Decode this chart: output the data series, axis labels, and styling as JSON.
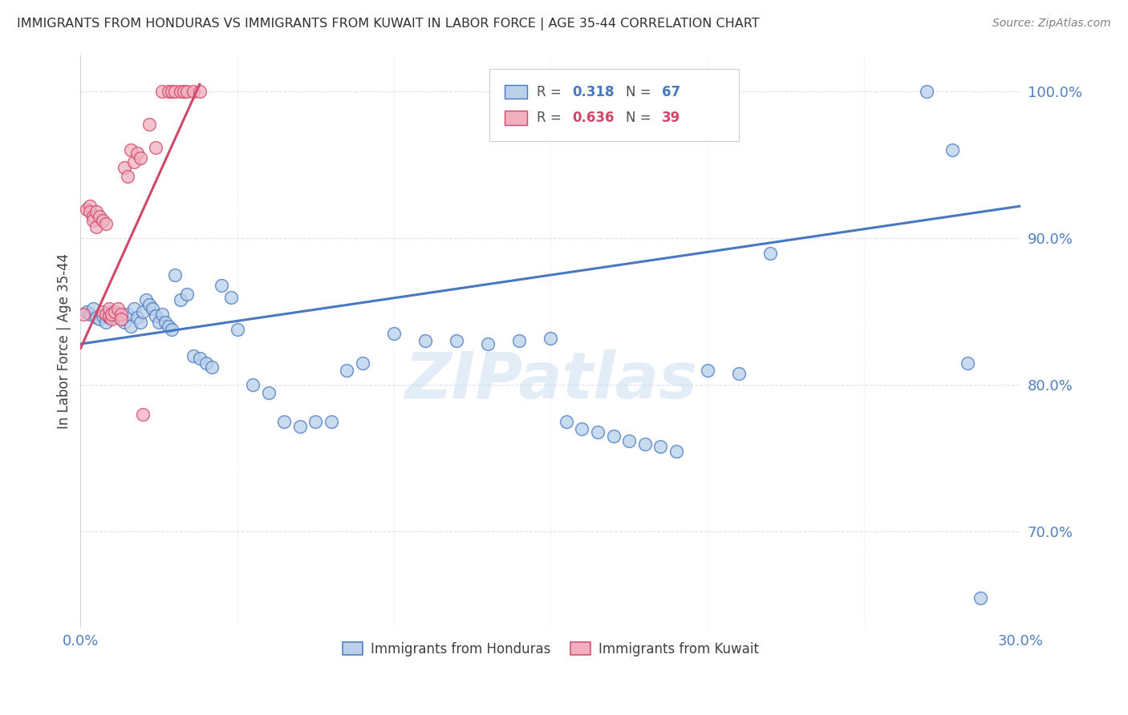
{
  "title": "IMMIGRANTS FROM HONDURAS VS IMMIGRANTS FROM KUWAIT IN LABOR FORCE | AGE 35-44 CORRELATION CHART",
  "source": "Source: ZipAtlas.com",
  "ylabel": "In Labor Force | Age 35-44",
  "xlim": [
    0.0,
    0.3
  ],
  "ylim": [
    0.635,
    1.025
  ],
  "yticks": [
    0.7,
    0.8,
    0.9,
    1.0
  ],
  "ytick_labels": [
    "70.0%",
    "80.0%",
    "90.0%",
    "100.0%"
  ],
  "xticks": [
    0.0,
    0.05,
    0.1,
    0.15,
    0.2,
    0.25,
    0.3
  ],
  "xtick_labels": [
    "0.0%",
    "",
    "",
    "",
    "",
    "",
    "30.0%"
  ],
  "legend_r1_val": "0.318",
  "legend_n1_val": "67",
  "legend_r2_val": "0.636",
  "legend_n2_val": "39",
  "label1": "Immigrants from Honduras",
  "label2": "Immigrants from Kuwait",
  "blue_fill": "#b8d0ea",
  "blue_edge": "#4878c0",
  "pink_fill": "#f0b0c0",
  "pink_edge": "#d04868",
  "blue_line": "#4878c0",
  "pink_line": "#d04868",
  "blue_text": "#4878c0",
  "pink_text": "#d04868",
  "watermark": "ZIPatlas",
  "grid_color": "#d8dde8",
  "tick_color": "#5080c0",
  "title_color": "#303030",
  "source_color": "#808080",
  "ylabel_color": "#404040",
  "hond_x": [
    0.002,
    0.003,
    0.004,
    0.005,
    0.006,
    0.007,
    0.008,
    0.009,
    0.01,
    0.011,
    0.012,
    0.013,
    0.014,
    0.015,
    0.016,
    0.017,
    0.018,
    0.019,
    0.02,
    0.021,
    0.022,
    0.023,
    0.024,
    0.025,
    0.026,
    0.027,
    0.028,
    0.029,
    0.03,
    0.032,
    0.034,
    0.036,
    0.038,
    0.04,
    0.042,
    0.045,
    0.048,
    0.05,
    0.055,
    0.06,
    0.065,
    0.07,
    0.075,
    0.08,
    0.085,
    0.09,
    0.1,
    0.11,
    0.12,
    0.13,
    0.14,
    0.15,
    0.155,
    0.16,
    0.165,
    0.17,
    0.175,
    0.18,
    0.185,
    0.19,
    0.2,
    0.21,
    0.22,
    0.27,
    0.278,
    0.283,
    0.287
  ],
  "hond_y": [
    0.85,
    0.848,
    0.852,
    0.846,
    0.845,
    0.847,
    0.843,
    0.846,
    0.85,
    0.849,
    0.847,
    0.845,
    0.843,
    0.848,
    0.84,
    0.852,
    0.846,
    0.843,
    0.85,
    0.858,
    0.855,
    0.852,
    0.847,
    0.843,
    0.848,
    0.843,
    0.84,
    0.838,
    0.875,
    0.858,
    0.862,
    0.82,
    0.818,
    0.815,
    0.812,
    0.868,
    0.86,
    0.838,
    0.8,
    0.795,
    0.775,
    0.772,
    0.775,
    0.775,
    0.81,
    0.815,
    0.835,
    0.83,
    0.83,
    0.828,
    0.83,
    0.832,
    0.775,
    0.77,
    0.768,
    0.765,
    0.762,
    0.76,
    0.758,
    0.755,
    0.81,
    0.808,
    0.89,
    1.0,
    0.96,
    0.815,
    0.655
  ],
  "kuw_x": [
    0.001,
    0.002,
    0.003,
    0.003,
    0.004,
    0.004,
    0.005,
    0.005,
    0.006,
    0.007,
    0.007,
    0.008,
    0.008,
    0.009,
    0.009,
    0.01,
    0.01,
    0.011,
    0.012,
    0.013,
    0.013,
    0.014,
    0.015,
    0.016,
    0.017,
    0.018,
    0.019,
    0.02,
    0.022,
    0.024,
    0.026,
    0.028,
    0.029,
    0.03,
    0.032,
    0.033,
    0.034,
    0.036,
    0.038
  ],
  "kuw_y": [
    0.848,
    0.92,
    0.922,
    0.918,
    0.915,
    0.912,
    0.918,
    0.908,
    0.915,
    0.85,
    0.912,
    0.848,
    0.91,
    0.847,
    0.852,
    0.845,
    0.848,
    0.85,
    0.852,
    0.848,
    0.845,
    0.948,
    0.942,
    0.96,
    0.952,
    0.958,
    0.955,
    0.78,
    0.978,
    0.962,
    1.0,
    1.0,
    1.0,
    1.0,
    1.0,
    1.0,
    1.0,
    1.0,
    1.0
  ],
  "hond_trendline_x": [
    0.0,
    0.3
  ],
  "hond_trendline_y": [
    0.828,
    0.922
  ],
  "kuw_trendline_x0": 0.0,
  "kuw_trendline_x1": 0.038,
  "kuw_trendline_y0": 0.825,
  "kuw_trendline_y1": 1.005
}
